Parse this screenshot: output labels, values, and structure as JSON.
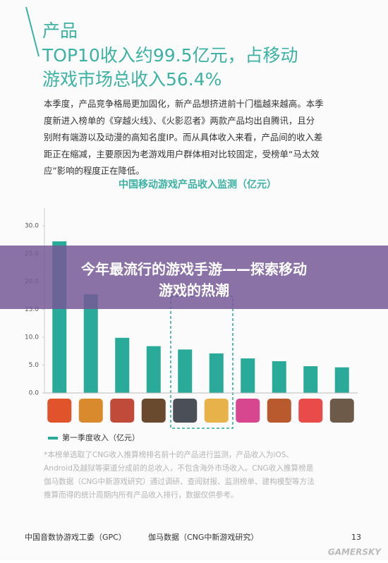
{
  "header": {
    "lines": [
      "产品",
      "TOP10收入约99.5亿元，占移动",
      "游戏市场总收入56.4%"
    ]
  },
  "paragraph": [
    "本季度，产品竞争格局更加固化，新产品想挤进前十门槛越来越高。本季",
    "度新进入榜单的《穿越火线》、《火影忍者》两款产品均出自腾讯，且分",
    "别附有端游以及动漫的高知名度IP。而从具体收入来看，产品间的收入差",
    "距正在缩减，主要原因为老游戏用户群体相对比较固定，受榜单“马太效",
    "应”影响的程度正在降低。"
  ],
  "chart_data": {
    "type": "bar",
    "title": "中国移动游戏产品收入监测（亿元）",
    "categories": [
      null,
      null,
      null,
      null,
      null,
      null,
      null,
      null,
      null,
      null
    ],
    "series": [
      {
        "name": "第一季度收入（亿元）",
        "color": "#2aaa98",
        "values": [
          27.2,
          17.7,
          9.9,
          8.4,
          7.8,
          7.1,
          6.2,
          5.7,
          4.8,
          4.6
        ]
      }
    ],
    "ylim": [
      0,
      30
    ],
    "yticks": [
      {
        "value": 0,
        "label": "0.0"
      },
      {
        "value": 5,
        "label": "5.0"
      },
      {
        "value": 10,
        "label": "10.0"
      },
      {
        "value": 15,
        "label": "15.0"
      },
      {
        "value": 20,
        "label": "20.0"
      },
      {
        "value": 25,
        "label": "25.0"
      },
      {
        "value": 30,
        "label": "30.0"
      }
    ]
  },
  "footnote": [
    "*本榜单选取了CNG收入推算榜排名前十的产品进行监测，产品收入为iOS、",
    "Android及越狱等渠道分成前的总收入，不包含海外市场收入。CNG收入推算榜是",
    "伽马数据（CNG中新游戏研究）通过调研、查阅财报、监测榜单、建构模型等方法",
    "推算而得的统计周期内所有产品收入排行，数据仅供参考。"
  ],
  "footer": {
    "left": "中国音数协游戏工委（GPC）",
    "center": "伽马数据（CNG中新游戏研究）",
    "page": "13"
  },
  "overlay": {
    "lines": [
      "今年最流行的游戏手游——探索移动",
      "游戏的热潮"
    ]
  },
  "watermark": "GAMERSKY"
}
